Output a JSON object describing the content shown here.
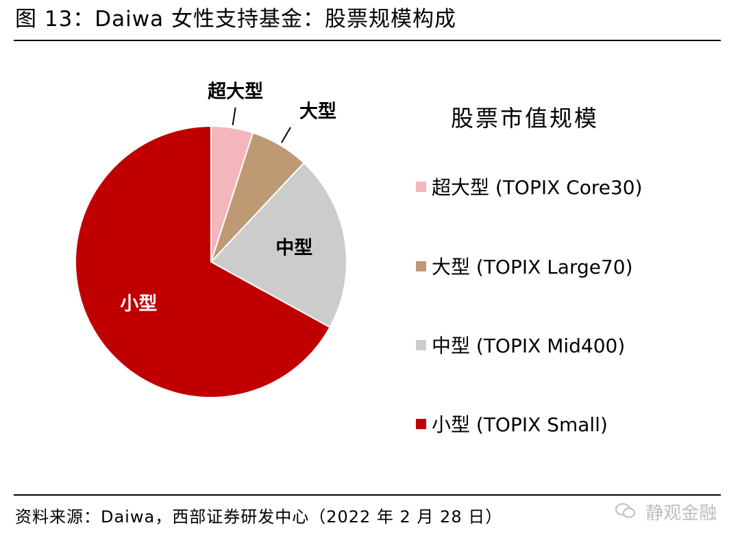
{
  "title": "图 13：Daiwa 女性支持基金：股票规模构成",
  "legend_title": "股票市值规模",
  "source": "资料来源：Daiwa，西部证券研发中心（2022 年 2 月 28 日）",
  "watermark": {
    "icon": "wechat-icon",
    "text": "静观金融"
  },
  "chart_data": {
    "type": "pie",
    "slices": [
      {
        "label": "超大型",
        "legend": "超大型 (TOPIX Core30)",
        "value": 5,
        "color": "#f4b6bb",
        "label_color": "#000000"
      },
      {
        "label": "大型",
        "legend": "大型 (TOPIX Large70)",
        "value": 7,
        "color": "#bd9a73",
        "label_color": "#000000"
      },
      {
        "label": "中型",
        "legend": "中型 (TOPIX Mid400)",
        "value": 21,
        "color": "#cccccc",
        "label_color": "#000000"
      },
      {
        "label": "小型",
        "legend": "小型 (TOPIX Small)",
        "value": 67,
        "color": "#c00000",
        "label_color": "#ffffff"
      }
    ],
    "legend_position": "right"
  }
}
